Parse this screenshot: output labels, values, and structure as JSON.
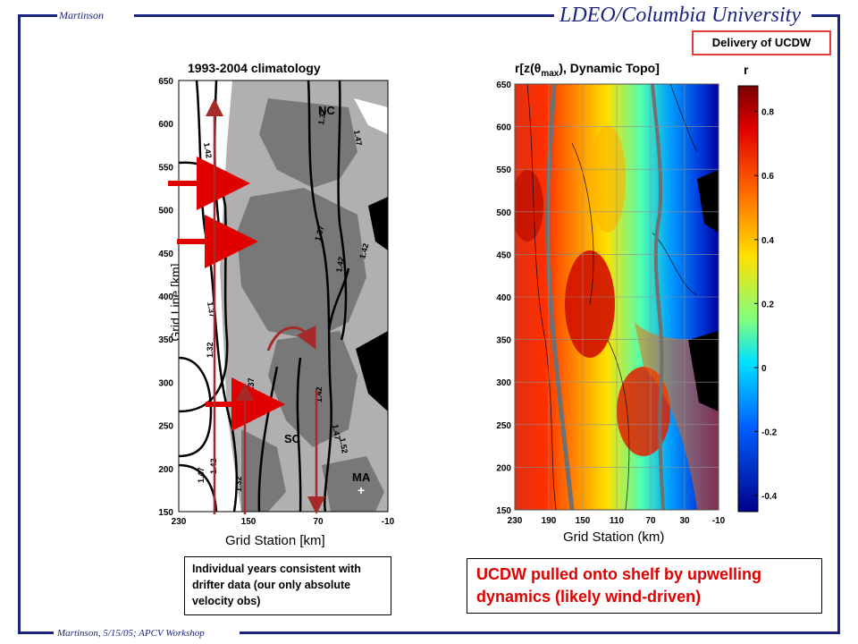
{
  "header": {
    "left": "Martinson",
    "right": "LDEO/Columbia University"
  },
  "footer": {
    "left": "Martinson, 5/15/05; APCV Workshop"
  },
  "badge": "Delivery of UCDW",
  "note_left": "Individual years consistent with drifter data (our only absolute velocity obs)",
  "note_right": "UCDW pulled onto shelf by upwelling dynamics (likely wind-driven)",
  "colors": {
    "frame": "#1a237e",
    "arrow": "#e00000",
    "arrow_dark": "#a52a2a",
    "highlight": "#e53935"
  },
  "chart_data": [
    {
      "type": "heatmap",
      "title": "1993-2004 climatology",
      "xlabel": "Grid Station [km]",
      "ylabel": "Grid Line [km]",
      "xticks": [
        "230",
        "150",
        "70",
        "-10"
      ],
      "yticks": [
        "650",
        "600",
        "550",
        "500",
        "450",
        "400",
        "350",
        "300",
        "250",
        "200",
        "150"
      ],
      "xlim": [
        230,
        -10
      ],
      "ylim": [
        150,
        650
      ],
      "contour_labels": [
        "1.42",
        "1.47",
        "1.32",
        "1.47",
        "1.37",
        "1.42",
        "1.42",
        "1.42",
        "1.37",
        "1.32",
        "1.37",
        "1.42",
        "1.47",
        "1.52",
        "1.47",
        "1.42",
        "1.32"
      ],
      "site_labels": [
        "NC",
        "SC",
        "MA",
        "OA"
      ]
    },
    {
      "type": "heatmap",
      "title": "r[z(θmax), Dynamic Topo]",
      "xlabel": "Grid Station (km)",
      "xticks": [
        "230",
        "190",
        "150",
        "110",
        "70",
        "30",
        "-10"
      ],
      "yticks": [
        "650",
        "600",
        "550",
        "500",
        "450",
        "400",
        "350",
        "300",
        "250",
        "200",
        "150"
      ],
      "xlim": [
        230,
        -10
      ],
      "ylim": [
        150,
        650
      ],
      "colorbar": {
        "label": "r",
        "ticks": [
          "0.8",
          "0.6",
          "0.4",
          "0.2",
          "0",
          "-0.2",
          "-0.4"
        ],
        "range": [
          -0.45,
          0.88
        ]
      }
    }
  ]
}
